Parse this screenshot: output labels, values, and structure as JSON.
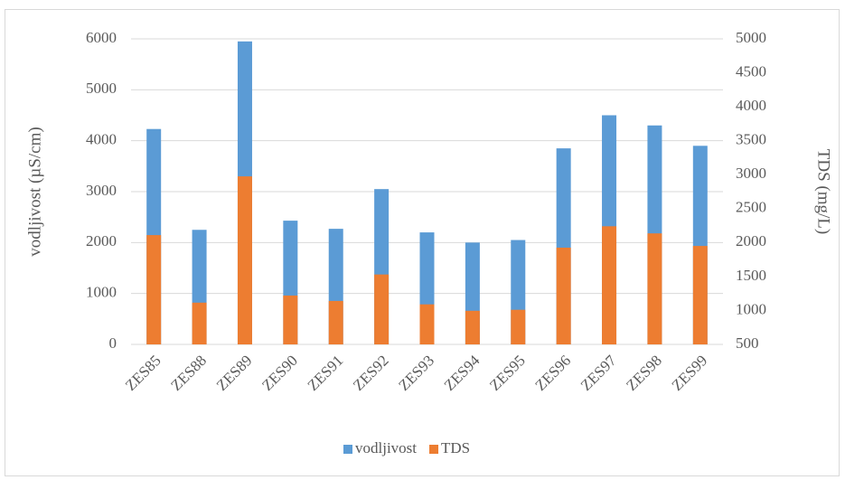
{
  "chart_data": {
    "type": "bar",
    "categories": [
      "ZES85",
      "ZES88",
      "ZES89",
      "ZES90",
      "ZES91",
      "ZES92",
      "ZES93",
      "ZES94",
      "ZES95",
      "ZES96",
      "ZES97",
      "ZES98",
      "ZES99"
    ],
    "series": [
      {
        "name": "vodljivost",
        "color": "#5b9bd5",
        "values": [
          4230,
          2250,
          5950,
          2430,
          2270,
          3050,
          2200,
          2000,
          2050,
          3850,
          4500,
          4300,
          3900
        ]
      },
      {
        "name": "TDS",
        "color": "#ed7d31",
        "axis": "y2",
        "values": [
          2110,
          1115,
          2975,
          1220,
          1140,
          1530,
          1090,
          995,
          1010,
          1925,
          2240,
          2135,
          1950
        ]
      }
    ],
    "y_label": "vodljivost (µS/cm)",
    "y2_label": "TDS (mg/L)",
    "ylim": [
      0,
      6000
    ],
    "yticks": [
      0,
      1000,
      2000,
      3000,
      4000,
      5000,
      6000
    ],
    "y2lim": [
      500,
      5000
    ],
    "y2ticks": [
      500,
      1000,
      1500,
      2000,
      2500,
      3000,
      3500,
      4000,
      4500,
      5000
    ],
    "grid": true,
    "legend": "bottom"
  }
}
